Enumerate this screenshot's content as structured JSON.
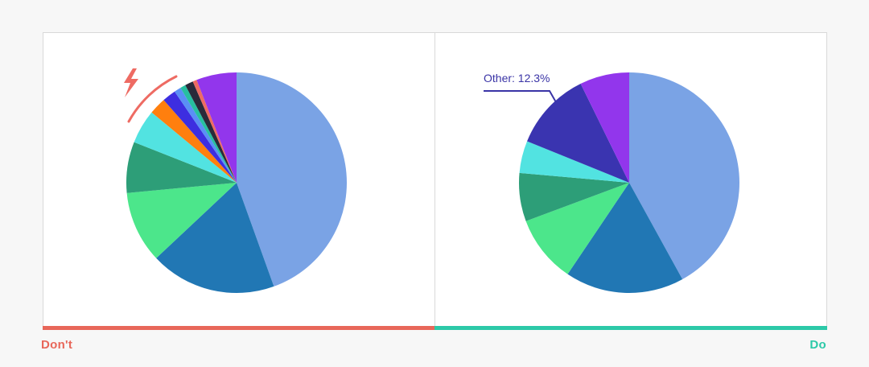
{
  "colors": {
    "dont": "#e8675a",
    "do": "#2cc9a8",
    "callout": "#3a34a6",
    "warning": "#ee6b63"
  },
  "captions": {
    "dont": "Don't",
    "do": "Do"
  },
  "chart_data": [
    {
      "type": "pie",
      "slices": [
        {
          "value": 44.5,
          "color": "#7aa3e5"
        },
        {
          "value": 18.5,
          "color": "#2177b4"
        },
        {
          "value": 10.5,
          "color": "#4ce68b"
        },
        {
          "value": 7.5,
          "color": "#2d9e78"
        },
        {
          "value": 5.0,
          "color": "#52e3e1"
        },
        {
          "value": 2.5,
          "color": "#ff7f0e"
        },
        {
          "value": 2.0,
          "color": "#3d2ee0"
        },
        {
          "value": 1.0,
          "color": "#5a8ff5"
        },
        {
          "value": 0.8,
          "color": "#27bfa0"
        },
        {
          "value": 1.2,
          "color": "#2a2a3a"
        },
        {
          "value": 0.6,
          "color": "#ee6b63"
        },
        {
          "value": 5.9,
          "color": "#9236ec"
        }
      ]
    },
    {
      "type": "pie",
      "slices": [
        {
          "value": 44.5,
          "color": "#7aa3e5"
        },
        {
          "value": 18.5,
          "color": "#2177b4"
        },
        {
          "value": 10.5,
          "color": "#4ce68b"
        },
        {
          "value": 7.5,
          "color": "#2d9e78"
        },
        {
          "value": 5.0,
          "color": "#52e3e1"
        },
        {
          "value": 12.3,
          "color": "#3a34b0",
          "label": "Other: 12.3%"
        },
        {
          "value": 7.7,
          "color": "#9236ec"
        }
      ]
    }
  ]
}
